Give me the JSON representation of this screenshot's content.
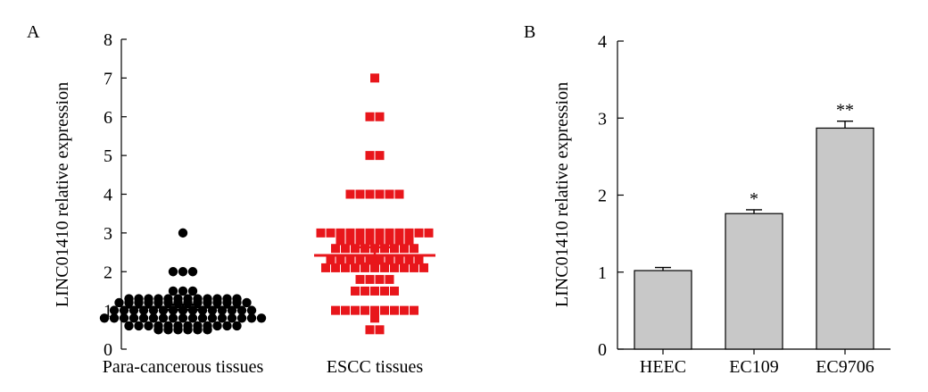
{
  "panels": [
    {
      "panel_label": "A",
      "ylabel": "LINC01410 relative expression",
      "yticks": [
        "0",
        "1",
        "2",
        "3",
        "4",
        "5",
        "6",
        "7",
        "8"
      ]
    },
    {
      "panel_label": "B",
      "ylabel": "LINC01410 relative expression",
      "yticks": [
        "0",
        "1",
        "2",
        "3",
        "4"
      ]
    }
  ],
  "chart_data": [
    {
      "type": "scatter",
      "title": "",
      "xlabel": "",
      "ylabel": "LINC01410 relative expression",
      "ylim": [
        0,
        8
      ],
      "categories": [
        "Para-cancerous tissues",
        "ESCC tissues"
      ],
      "colors": {
        "Para-cancerous tissues": "#000000",
        "ESCC tissues": "#e8161b"
      },
      "markers": {
        "Para-cancerous tissues": "circle",
        "ESCC tissues": "square"
      },
      "points": [
        {
          "group": "Para-cancerous tissues",
          "values": [
            3.0,
            2.0,
            2.0,
            2.0,
            1.5,
            1.5,
            1.5,
            1.3,
            1.3,
            1.3,
            1.3,
            1.3,
            1.3,
            1.3,
            1.3,
            1.3,
            1.3,
            1.3,
            1.3,
            1.2,
            1.2,
            1.2,
            1.2,
            1.2,
            1.2,
            1.2,
            1.2,
            1.2,
            1.2,
            1.2,
            1.2,
            1.2,
            1.2,
            1.0,
            1.0,
            1.0,
            1.0,
            1.0,
            1.0,
            1.0,
            1.0,
            1.0,
            1.0,
            1.0,
            1.0,
            1.0,
            1.0,
            1.0,
            0.8,
            0.8,
            0.8,
            0.8,
            0.8,
            0.8,
            0.8,
            0.8,
            0.8,
            0.8,
            0.8,
            0.8,
            0.8,
            0.8,
            0.8,
            0.8,
            0.8,
            0.6,
            0.6,
            0.6,
            0.6,
            0.6,
            0.6,
            0.6,
            0.6,
            0.6,
            0.6,
            0.6,
            0.6,
            0.5,
            0.5,
            0.5,
            0.5,
            0.5,
            0.5
          ]
        },
        {
          "group": "ESCC tissues",
          "values": [
            7.0,
            6.0,
            6.0,
            5.0,
            5.0,
            4.0,
            4.0,
            4.0,
            4.0,
            4.0,
            4.0,
            3.0,
            3.0,
            3.0,
            3.0,
            3.0,
            3.0,
            3.0,
            3.0,
            3.0,
            3.0,
            3.0,
            3.0,
            2.8,
            2.8,
            2.8,
            2.8,
            2.8,
            2.8,
            2.8,
            2.8,
            2.6,
            2.6,
            2.6,
            2.6,
            2.6,
            2.6,
            2.6,
            2.6,
            2.6,
            2.3,
            2.3,
            2.3,
            2.3,
            2.3,
            2.3,
            2.3,
            2.3,
            2.3,
            2.3,
            2.1,
            2.1,
            2.1,
            2.1,
            2.1,
            2.1,
            2.1,
            2.1,
            2.1,
            2.1,
            2.1,
            1.8,
            1.8,
            1.8,
            1.8,
            1.5,
            1.5,
            1.5,
            1.5,
            1.5,
            1.0,
            1.0,
            1.0,
            1.0,
            1.0,
            1.0,
            1.0,
            1.0,
            1.0,
            0.8,
            0.5,
            0.5
          ]
        }
      ],
      "mean": {
        "Para-cancerous tissues": 1.08,
        "ESCC tissues": 2.42
      },
      "sem": {
        "Para-cancerous tissues": 0.07,
        "ESCC tissues": 0.21
      }
    },
    {
      "type": "bar",
      "title": "",
      "xlabel": "",
      "ylabel": "LINC01410 relative expression",
      "ylim": [
        0,
        4
      ],
      "categories": [
        "HEEC",
        "EC109",
        "EC9706"
      ],
      "values": [
        1.02,
        1.76,
        2.87
      ],
      "errors": [
        0.04,
        0.05,
        0.09
      ],
      "annotations": [
        "",
        "*",
        "**"
      ],
      "bar_color": "#c8c8c8"
    }
  ]
}
